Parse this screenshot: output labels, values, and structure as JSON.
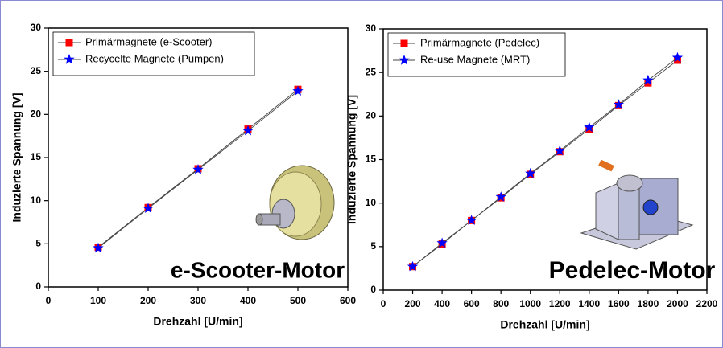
{
  "chart_data": [
    {
      "type": "line",
      "xlabel": "Drehzahl [U/min]",
      "ylabel": "Induzierte Spannung [V]",
      "annotation": "e-Scooter-Motor",
      "x": [
        100,
        200,
        300,
        400,
        500
      ],
      "series": [
        {
          "name": "Primärmagnete (e-Scooter)",
          "color": "#ff0000",
          "marker": "square",
          "values": [
            4.6,
            9.2,
            13.7,
            18.3,
            22.9
          ]
        },
        {
          "name": "Recycelte Magnete (Pumpen)",
          "color": "#0000ff",
          "marker": "star",
          "values": [
            4.5,
            9.1,
            13.6,
            18.1,
            22.7
          ]
        }
      ],
      "xlim": [
        0,
        600
      ],
      "xticks": [
        0,
        100,
        200,
        300,
        400,
        500,
        600
      ],
      "ylim": [
        0,
        30
      ],
      "yticks": [
        0,
        5,
        10,
        15,
        20,
        25,
        30
      ],
      "legend": "upper left"
    },
    {
      "type": "line",
      "xlabel": "Drehzahl [U/min]",
      "ylabel": "Induzierte Spannung [V]",
      "annotation": "Pedelec-Motor",
      "x": [
        200,
        400,
        600,
        800,
        1000,
        1200,
        1400,
        1600,
        1800,
        2000
      ],
      "series": [
        {
          "name": "Primärmagnete (Pedelec)",
          "color": "#ff0000",
          "marker": "square",
          "values": [
            2.7,
            5.3,
            8.0,
            10.6,
            13.3,
            15.9,
            18.5,
            21.2,
            23.8,
            26.4
          ]
        },
        {
          "name": "Re-use Magnete (MRT)",
          "color": "#0000ff",
          "marker": "star",
          "values": [
            2.7,
            5.4,
            8.0,
            10.7,
            13.4,
            16.0,
            18.7,
            21.3,
            24.1,
            26.7
          ]
        }
      ],
      "xlim": [
        0,
        2200
      ],
      "xticks": [
        0,
        200,
        400,
        600,
        800,
        1000,
        1200,
        1400,
        1600,
        1800,
        2000,
        2200
      ],
      "ylim": [
        0,
        30
      ],
      "yticks": [
        0,
        5,
        10,
        15,
        20,
        25,
        30
      ],
      "legend": "upper left"
    }
  ]
}
